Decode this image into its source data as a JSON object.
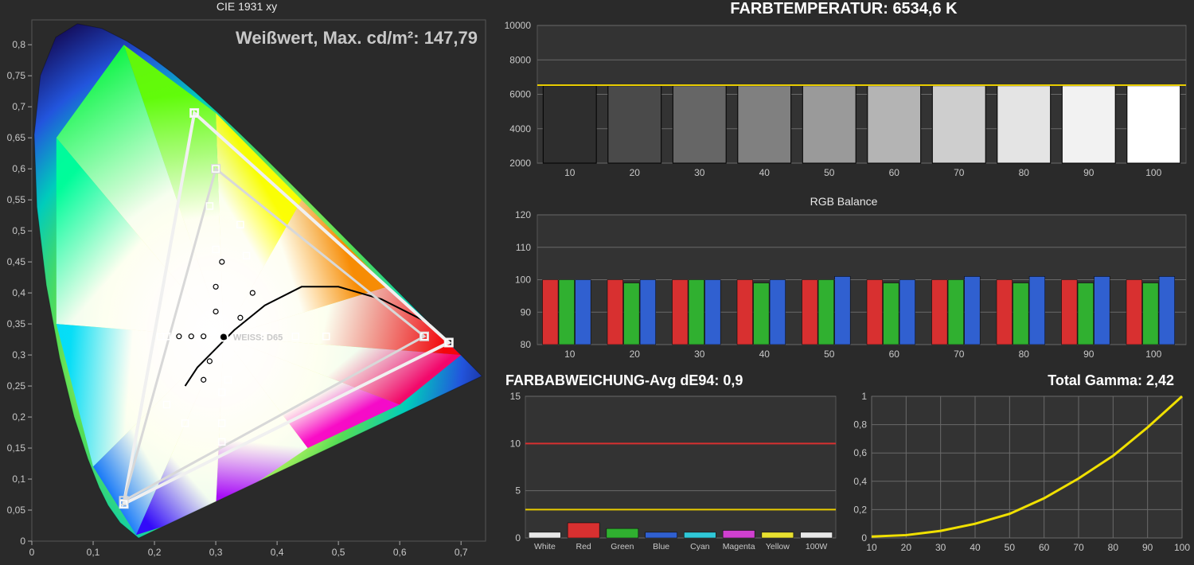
{
  "cie": {
    "title": "CIE 1931 xy",
    "overlay_text": "Weißwert, Max. cd/m²: 147,79",
    "white_label": "WEISS: D65",
    "xticks": [
      "0",
      "0,1",
      "0,2",
      "0,3",
      "0,4",
      "0,5",
      "0,6",
      "0,7"
    ],
    "yticks": [
      "0",
      "0,05",
      "0,1",
      "0,15",
      "0,2",
      "0,25",
      "0,3",
      "0,35",
      "0,4",
      "0,45",
      "0,5",
      "0,55",
      "0,6",
      "0,65",
      "0,7",
      "0,75",
      "0,8"
    ],
    "triangle_outer": [
      [
        0.15,
        0.06
      ],
      [
        0.68,
        0.32
      ],
      [
        0.265,
        0.69
      ]
    ],
    "triangle_inner": [
      [
        0.15,
        0.065
      ],
      [
        0.64,
        0.33
      ],
      [
        0.3,
        0.6
      ]
    ],
    "white_point": [
      0.3127,
      0.329
    ],
    "marker_stroke": "#ffffff",
    "triangle_stroke": "#e8e8e8",
    "triangle_width": 3
  },
  "temp": {
    "title": "FARBTEMPERATUR: 6534,6 K",
    "ylim": [
      2000,
      10000
    ],
    "ytick_step": 2000,
    "yticks": [
      2000,
      4000,
      6000,
      8000,
      10000
    ],
    "xlabels": [
      "10",
      "20",
      "30",
      "40",
      "50",
      "60",
      "70",
      "80",
      "90",
      "100"
    ],
    "bars": [
      {
        "v": 6500,
        "fill": "#2e2e2e"
      },
      {
        "v": 6500,
        "fill": "#4a4a4a"
      },
      {
        "v": 6500,
        "fill": "#666666"
      },
      {
        "v": 6500,
        "fill": "#808080"
      },
      {
        "v": 6500,
        "fill": "#9a9a9a"
      },
      {
        "v": 6500,
        "fill": "#b4b4b4"
      },
      {
        "v": 6500,
        "fill": "#cecece"
      },
      {
        "v": 6500,
        "fill": "#e4e4e4"
      },
      {
        "v": 6500,
        "fill": "#f2f2f2"
      },
      {
        "v": 6500,
        "fill": "#ffffff"
      }
    ],
    "ref_line": 6530,
    "ref_color": "#e8cc00",
    "grid_color": "#6a6a6a",
    "bg": "#333333"
  },
  "rgb": {
    "title": "RGB Balance",
    "ylim": [
      80,
      120
    ],
    "yticks": [
      80,
      90,
      100,
      110,
      120
    ],
    "xlabels": [
      "10",
      "20",
      "30",
      "40",
      "50",
      "60",
      "70",
      "80",
      "90",
      "100"
    ],
    "groups": [
      {
        "r": 100,
        "g": 100,
        "b": 100
      },
      {
        "r": 100,
        "g": 99,
        "b": 100
      },
      {
        "r": 100,
        "g": 100,
        "b": 100
      },
      {
        "r": 100,
        "g": 99,
        "b": 100
      },
      {
        "r": 100,
        "g": 100,
        "b": 101
      },
      {
        "r": 100,
        "g": 99,
        "b": 100
      },
      {
        "r": 100,
        "g": 100,
        "b": 101
      },
      {
        "r": 100,
        "g": 99,
        "b": 101
      },
      {
        "r": 100,
        "g": 99,
        "b": 101
      },
      {
        "r": 100,
        "g": 99,
        "b": 101
      }
    ],
    "colors": {
      "r": "#d83030",
      "g": "#30b030",
      "b": "#3060d0"
    },
    "grid_color": "#6a6a6a",
    "bg": "#333333"
  },
  "dev": {
    "title": "FARBABWEICHUNG-Avg dE94: 0,9",
    "ylim": [
      0,
      15
    ],
    "yticks": [
      0,
      5,
      10,
      15
    ],
    "xlabels": [
      "White",
      "Red",
      "Green",
      "Blue",
      "Cyan",
      "Magenta",
      "Yellow",
      "100W"
    ],
    "bars": [
      {
        "label": "White",
        "v": 0.6,
        "fill": "#e8e8e8"
      },
      {
        "label": "Red",
        "v": 1.6,
        "fill": "#d83030"
      },
      {
        "label": "Green",
        "v": 1.0,
        "fill": "#30b030"
      },
      {
        "label": "Blue",
        "v": 0.6,
        "fill": "#3060d0"
      },
      {
        "label": "Cyan",
        "v": 0.6,
        "fill": "#30c8d8"
      },
      {
        "label": "Magenta",
        "v": 0.8,
        "fill": "#d040d0"
      },
      {
        "label": "Yellow",
        "v": 0.6,
        "fill": "#e8e030"
      },
      {
        "label": "100W",
        "v": 0.6,
        "fill": "#e8e8e8"
      }
    ],
    "lines": [
      {
        "v": 10,
        "color": "#d83030"
      },
      {
        "v": 3,
        "color": "#e8cc00"
      }
    ],
    "grid_color": "#6a6a6a",
    "bg": "#333333"
  },
  "gamma": {
    "title": "Total Gamma: 2,42",
    "xlim": [
      10,
      100
    ],
    "ylim": [
      0,
      1
    ],
    "xticks": [
      10,
      20,
      30,
      40,
      50,
      60,
      70,
      80,
      90,
      100
    ],
    "yticks": [
      "0",
      "0,2",
      "0,4",
      "0,6",
      "0,8",
      "1"
    ],
    "curve": [
      [
        10,
        0.01
      ],
      [
        20,
        0.02
      ],
      [
        30,
        0.05
      ],
      [
        40,
        0.1
      ],
      [
        50,
        0.17
      ],
      [
        60,
        0.28
      ],
      [
        70,
        0.42
      ],
      [
        80,
        0.58
      ],
      [
        90,
        0.78
      ],
      [
        100,
        1.0
      ]
    ],
    "line_color": "#f0e000",
    "line_width": 3,
    "grid_color": "#6a6a6a",
    "bg": "#333333"
  }
}
